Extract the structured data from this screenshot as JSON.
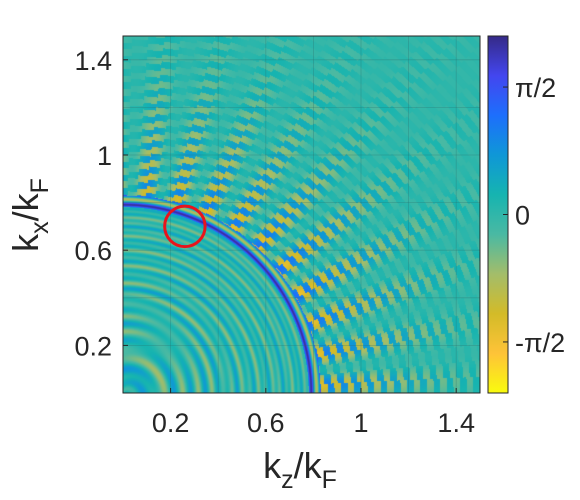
{
  "chart_data": {
    "type": "heatmap",
    "title": "",
    "xlabel": {
      "base": "k",
      "sub": "z",
      "sep": "/",
      "base2": "k",
      "sub2": "F"
    },
    "ylabel": {
      "base": "k",
      "sub": "x",
      "sep": "/",
      "base2": "k",
      "sub2": "F"
    },
    "xlim": [
      0,
      1.5
    ],
    "ylim": [
      0,
      1.5
    ],
    "xticks": [
      0.2,
      0.6,
      1,
      1.4
    ],
    "xtick_labels": [
      "0.2",
      "0.6",
      "1",
      "1.4"
    ],
    "yticks": [
      0.2,
      0.6,
      1,
      1.4
    ],
    "ytick_labels": [
      "0.2",
      "0.6",
      "1",
      "1.4"
    ],
    "grid": true,
    "colormap": "parula",
    "colormap_stops": [
      "#f9fb0e",
      "#fec338",
      "#d3bb28",
      "#a3bd6a",
      "#4ab9a3",
      "#16b4b0",
      "#0f97d7",
      "#1d6ffc",
      "#4346ef",
      "#352a87"
    ],
    "colorbar": {
      "range": [
        -2.2,
        2.2
      ],
      "ticks": [
        1.5708,
        0,
        -1.5708
      ],
      "tick_labels": [
        "π/2",
        "0",
        "-π/2"
      ]
    },
    "annotations": [
      {
        "type": "circle",
        "x": 0.26,
        "y": 0.7,
        "radius": 0.085,
        "color": "#e8141c"
      }
    ],
    "background_color": "#1fb0ae",
    "description_of_field": "phase map: noisy oscillating rings centered near origin; inner region (k<~0.8) fine concentric rings; sharp phase jump near k≈0.8 with blue edge; outer region stepped arcs alternating yellow/blue fading toward uniform teal"
  }
}
